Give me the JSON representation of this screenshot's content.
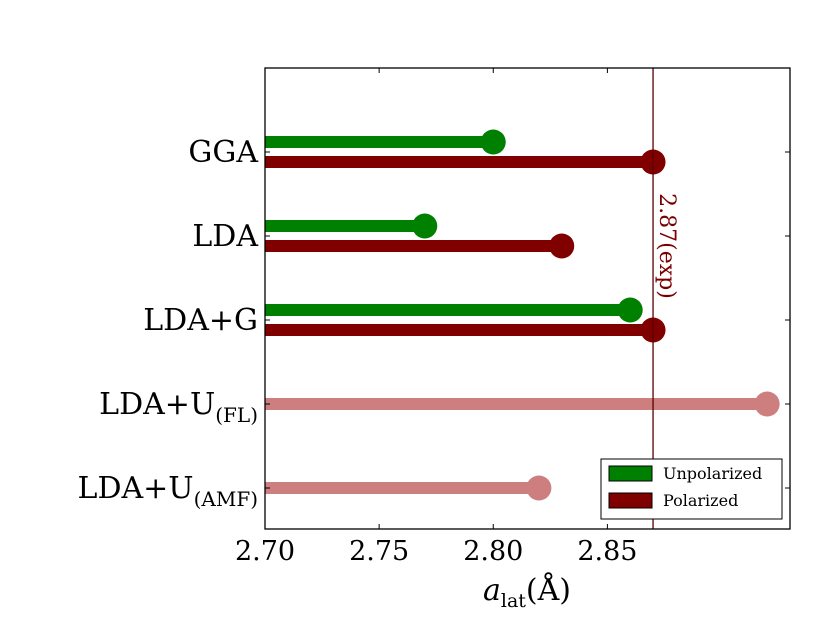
{
  "chart_data": {
    "type": "bar",
    "orientation": "horizontal",
    "categories": [
      "GGA",
      "LDA",
      "LDA+G",
      "LDA+U(FL)",
      "LDA+U(AMF)"
    ],
    "category_labels": [
      {
        "main": "GGA",
        "sub": ""
      },
      {
        "main": "LDA",
        "sub": ""
      },
      {
        "main": "LDA+G",
        "sub": ""
      },
      {
        "main": "LDA+U",
        "sub": "(FL)"
      },
      {
        "main": "LDA+U",
        "sub": "(AMF)"
      }
    ],
    "series": [
      {
        "name": "Unpolarized",
        "color": "#008000",
        "values": [
          2.8,
          2.77,
          2.86,
          null,
          null
        ]
      },
      {
        "name": "Polarized",
        "color": "#800000",
        "values": [
          2.87,
          2.83,
          2.87,
          null,
          null
        ]
      },
      {
        "name": "",
        "color": "#cd7f7f",
        "values": [
          null,
          null,
          null,
          2.92,
          2.82
        ]
      }
    ],
    "xlim": [
      2.7,
      2.93
    ],
    "xticks": [
      "2.70",
      "2.75",
      "2.80",
      "2.85"
    ],
    "xtick_values": [
      2.7,
      2.75,
      2.8,
      2.85
    ],
    "xlabel": {
      "main": "a",
      "sub": "lat",
      "suffix": "(Å)"
    },
    "reference_line": {
      "value": 2.87,
      "label": "2.87(exp)",
      "color": "#5a0000"
    },
    "legend": {
      "position": "lower-right",
      "entries": [
        {
          "label": "Unpolarized",
          "color": "#008000"
        },
        {
          "label": "Polarized",
          "color": "#800000"
        }
      ]
    }
  }
}
